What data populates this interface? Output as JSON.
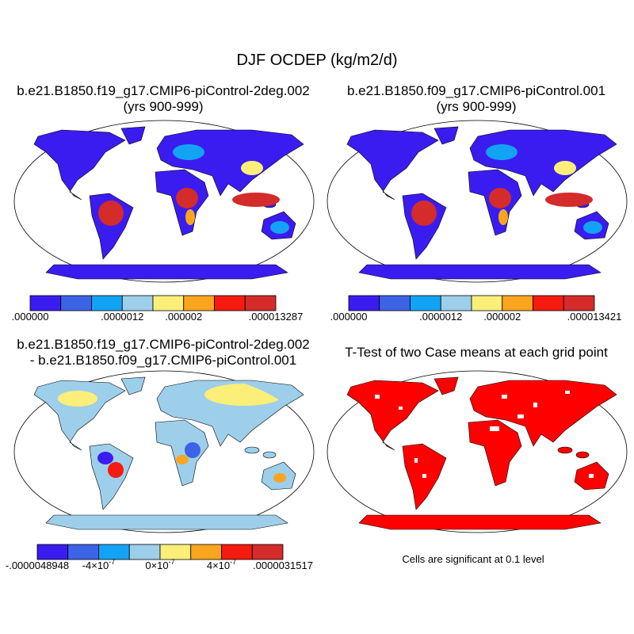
{
  "title": "DJF OCDEP (kg/m2/d)",
  "panels": [
    {
      "title": [
        "b.e21.B1850.f19_g17.CMIP6-piControl-2deg.002",
        "(yrs 900-999)"
      ],
      "colorbar": {
        "colors": [
          "#3b1cf0",
          "#3d63e6",
          "#13a3f5",
          "#9dcfeb",
          "#fbef7a",
          "#f9a51f",
          "#f51b10",
          "#d42b2b"
        ],
        "labels": [
          ".000000",
          null,
          null,
          ".0000012",
          null,
          ".000002",
          null,
          null,
          ".000013287"
        ]
      }
    },
    {
      "title": [
        "b.e21.B1850.f09_g17.CMIP6-piControl.001",
        "(yrs 900-999)"
      ],
      "colorbar": {
        "colors": [
          "#3b1cf0",
          "#3d63e6",
          "#13a3f5",
          "#9dcfeb",
          "#fbef7a",
          "#f9a51f",
          "#f51b10",
          "#d42b2b"
        ],
        "labels": [
          ".000000",
          null,
          null,
          ".0000012",
          null,
          ".000002",
          null,
          null,
          ".000013421"
        ]
      }
    },
    {
      "title": [
        "b.e21.B1850.f19_g17.CMIP6-piControl-2deg.002",
        "- b.e21.B1850.f09_g17.CMIP6-piControl.001"
      ],
      "colorbar": {
        "colors": [
          "#3b1cf0",
          "#3d63e6",
          "#13a3f5",
          "#9dcfeb",
          "#fbef7a",
          "#f9a51f",
          "#f51b10",
          "#d42b2b"
        ],
        "labels": [
          "-.0000048948",
          null,
          {
            "base": "-4×10",
            "exp": "-7"
          },
          null,
          {
            "base": "0×10",
            "exp": "-7"
          },
          null,
          {
            "base": "4×10",
            "exp": "-7"
          },
          null,
          ".0000031517"
        ]
      }
    },
    {
      "title": [
        "T-Test of two Case means at each grid point"
      ],
      "note": "Cells are significant at 0.1 level"
    }
  ]
}
